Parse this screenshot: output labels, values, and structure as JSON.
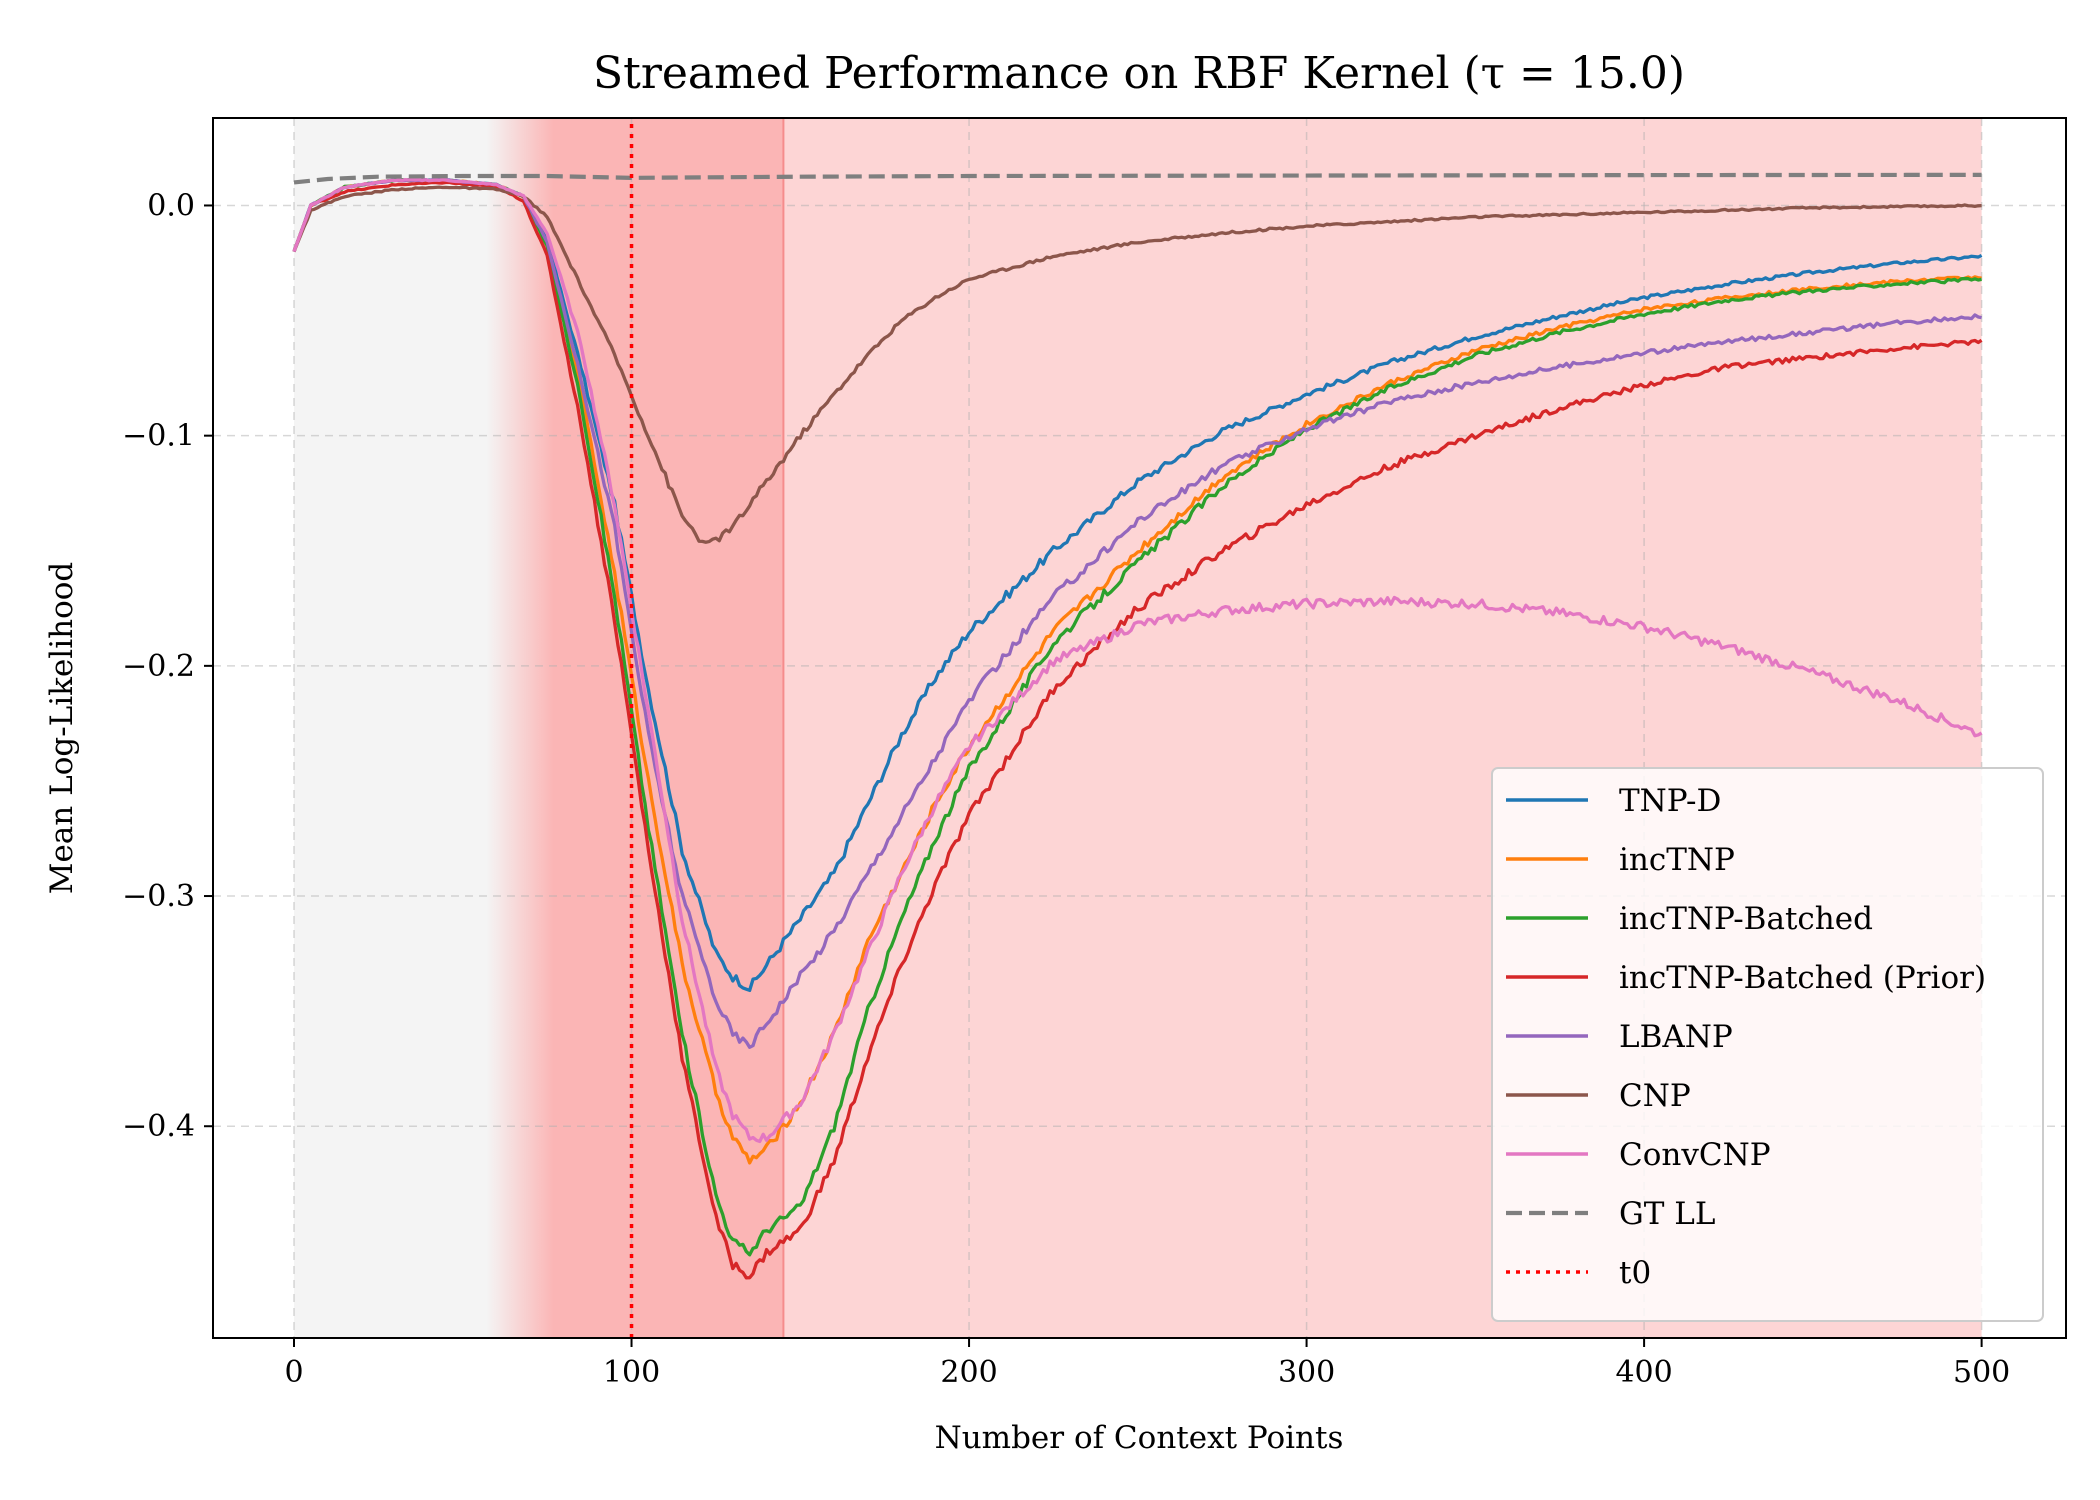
{
  "chart_data": {
    "type": "line",
    "title": "Streamed Performance on RBF Kernel (τ = 15.0)",
    "xlabel": "Number of Context Points",
    "ylabel": "Mean Log-Likelihood",
    "xlim": [
      -24,
      525
    ],
    "ylim": [
      -0.492,
      0.038
    ],
    "xticks": [
      0,
      100,
      200,
      300,
      400,
      500
    ],
    "xtick_labels": [
      "0",
      "100",
      "200",
      "300",
      "400",
      "500"
    ],
    "yticks": [
      0.0,
      -0.1,
      -0.2,
      -0.3,
      -0.4
    ],
    "ytick_labels": [
      "0.0",
      "−0.1",
      "−0.2",
      "−0.3",
      "−0.4"
    ],
    "grid": true,
    "legend_position": "lower-right",
    "shaded_regions": [
      {
        "x_start": 0,
        "x_end": 75,
        "color": "#f4f4f4",
        "role": "pre-shift"
      },
      {
        "x_start": 75,
        "x_end": 145,
        "color": "#fbb5b5",
        "role": "shift"
      },
      {
        "x_start": 145,
        "x_end": 500,
        "color": "#fdd5d5",
        "role": "post-shift"
      }
    ],
    "series": [
      {
        "name": "TNP-D",
        "color": "#1f77b4",
        "style": "solid",
        "x": [
          0,
          5,
          15,
          30,
          45,
          60,
          68,
          75,
          85,
          95,
          105,
          115,
          125,
          130,
          135,
          140,
          150,
          160,
          170,
          180,
          190,
          200,
          225,
          250,
          275,
          300,
          325,
          350,
          375,
          400,
          425,
          450,
          475,
          500
        ],
        "y": [
          -0.02,
          0.0,
          0.008,
          0.011,
          0.011,
          0.009,
          0.004,
          -0.015,
          -0.07,
          -0.13,
          -0.21,
          -0.28,
          -0.325,
          -0.335,
          -0.34,
          -0.33,
          -0.31,
          -0.29,
          -0.26,
          -0.23,
          -0.205,
          -0.185,
          -0.15,
          -0.12,
          -0.098,
          -0.082,
          -0.068,
          -0.057,
          -0.048,
          -0.04,
          -0.034,
          -0.029,
          -0.025,
          -0.022
        ]
      },
      {
        "name": "incTNP",
        "color": "#ff7f0e",
        "style": "solid",
        "x": [
          0,
          5,
          15,
          30,
          45,
          60,
          68,
          75,
          85,
          95,
          105,
          115,
          125,
          130,
          135,
          140,
          150,
          160,
          170,
          180,
          190,
          200,
          225,
          250,
          275,
          300,
          325,
          350,
          375,
          400,
          425,
          450,
          475,
          500
        ],
        "y": [
          -0.02,
          0.0,
          0.008,
          0.011,
          0.011,
          0.009,
          0.004,
          -0.017,
          -0.08,
          -0.16,
          -0.25,
          -0.33,
          -0.385,
          -0.405,
          -0.415,
          -0.41,
          -0.39,
          -0.36,
          -0.32,
          -0.29,
          -0.26,
          -0.235,
          -0.185,
          -0.15,
          -0.118,
          -0.095,
          -0.077,
          -0.063,
          -0.053,
          -0.045,
          -0.04,
          -0.036,
          -0.033,
          -0.031
        ]
      },
      {
        "name": "incTNP-Batched",
        "color": "#2ca02c",
        "style": "solid",
        "x": [
          0,
          5,
          15,
          30,
          45,
          60,
          68,
          75,
          85,
          95,
          105,
          115,
          125,
          130,
          135,
          140,
          150,
          160,
          170,
          180,
          190,
          200,
          225,
          250,
          275,
          300,
          325,
          350,
          375,
          400,
          425,
          450,
          475,
          500
        ],
        "y": [
          -0.02,
          0.0,
          0.008,
          0.011,
          0.011,
          0.009,
          0.004,
          -0.018,
          -0.085,
          -0.17,
          -0.27,
          -0.36,
          -0.43,
          -0.45,
          -0.455,
          -0.445,
          -0.435,
          -0.4,
          -0.35,
          -0.31,
          -0.275,
          -0.245,
          -0.19,
          -0.155,
          -0.122,
          -0.097,
          -0.079,
          -0.065,
          -0.055,
          -0.047,
          -0.041,
          -0.037,
          -0.034,
          -0.032
        ]
      },
      {
        "name": "incTNP-Batched (Prior)",
        "color": "#d62728",
        "style": "solid",
        "x": [
          0,
          5,
          15,
          30,
          45,
          60,
          68,
          75,
          85,
          95,
          105,
          115,
          125,
          130,
          135,
          140,
          150,
          160,
          170,
          180,
          190,
          200,
          225,
          250,
          275,
          300,
          325,
          350,
          375,
          400,
          425,
          450,
          475,
          500
        ],
        "y": [
          -0.02,
          0.0,
          0.006,
          0.009,
          0.01,
          0.008,
          0.002,
          -0.022,
          -0.095,
          -0.18,
          -0.28,
          -0.37,
          -0.44,
          -0.46,
          -0.465,
          -0.455,
          -0.445,
          -0.415,
          -0.37,
          -0.33,
          -0.295,
          -0.265,
          -0.21,
          -0.175,
          -0.15,
          -0.13,
          -0.113,
          -0.1,
          -0.088,
          -0.078,
          -0.07,
          -0.066,
          -0.062,
          -0.059
        ]
      },
      {
        "name": "LBANP",
        "color": "#9467bd",
        "style": "solid",
        "x": [
          0,
          5,
          15,
          30,
          45,
          60,
          68,
          75,
          85,
          95,
          105,
          115,
          125,
          130,
          135,
          140,
          150,
          160,
          170,
          180,
          190,
          200,
          225,
          250,
          275,
          300,
          325,
          350,
          375,
          400,
          425,
          450,
          475,
          500
        ],
        "y": [
          -0.02,
          0.0,
          0.008,
          0.011,
          0.011,
          0.009,
          0.004,
          -0.016,
          -0.075,
          -0.14,
          -0.23,
          -0.3,
          -0.345,
          -0.36,
          -0.365,
          -0.355,
          -0.335,
          -0.315,
          -0.29,
          -0.265,
          -0.24,
          -0.215,
          -0.17,
          -0.137,
          -0.113,
          -0.097,
          -0.085,
          -0.077,
          -0.07,
          -0.064,
          -0.059,
          -0.055,
          -0.051,
          -0.048
        ]
      },
      {
        "name": "CNP",
        "color": "#8c564b",
        "style": "solid",
        "x": [
          0,
          5,
          15,
          30,
          45,
          60,
          68,
          75,
          85,
          95,
          105,
          115,
          122,
          130,
          140,
          150,
          160,
          170,
          180,
          190,
          200,
          225,
          250,
          275,
          300,
          325,
          350,
          375,
          400,
          425,
          450,
          475,
          500
        ],
        "y": [
          -0.02,
          -0.002,
          0.004,
          0.007,
          0.008,
          0.007,
          0.004,
          -0.005,
          -0.035,
          -0.065,
          -0.1,
          -0.135,
          -0.148,
          -0.14,
          -0.12,
          -0.1,
          -0.082,
          -0.065,
          -0.05,
          -0.04,
          -0.032,
          -0.022,
          -0.016,
          -0.012,
          -0.009,
          -0.007,
          -0.005,
          -0.004,
          -0.003,
          -0.002,
          -0.001,
          -0.0005,
          0.0
        ]
      },
      {
        "name": "ConvCNP",
        "color": "#e377c2",
        "style": "solid",
        "x": [
          0,
          5,
          15,
          30,
          45,
          60,
          68,
          75,
          85,
          95,
          105,
          115,
          125,
          130,
          135,
          140,
          150,
          160,
          170,
          180,
          190,
          200,
          225,
          250,
          275,
          300,
          325,
          350,
          375,
          400,
          425,
          450,
          475,
          500
        ],
        "y": [
          -0.02,
          0.0,
          0.008,
          0.011,
          0.011,
          0.009,
          0.004,
          -0.012,
          -0.06,
          -0.13,
          -0.22,
          -0.31,
          -0.375,
          -0.395,
          -0.405,
          -0.405,
          -0.39,
          -0.36,
          -0.325,
          -0.29,
          -0.26,
          -0.235,
          -0.198,
          -0.182,
          -0.176,
          -0.173,
          -0.172,
          -0.173,
          -0.177,
          -0.183,
          -0.192,
          -0.203,
          -0.215,
          -0.23
        ]
      },
      {
        "name": "GT LL",
        "color": "#7f7f7f",
        "style": "dashed",
        "x": [
          0,
          10,
          25,
          50,
          75,
          100,
          150,
          200,
          300,
          400,
          500
        ],
        "y": [
          0.01,
          0.0115,
          0.0125,
          0.0128,
          0.0128,
          0.012,
          0.0125,
          0.0128,
          0.013,
          0.0132,
          0.0133
        ]
      },
      {
        "name": "t0",
        "color": "#ff0000",
        "style": "dotted",
        "x": [
          100,
          100
        ],
        "y": [
          -0.492,
          0.038
        ]
      }
    ]
  }
}
